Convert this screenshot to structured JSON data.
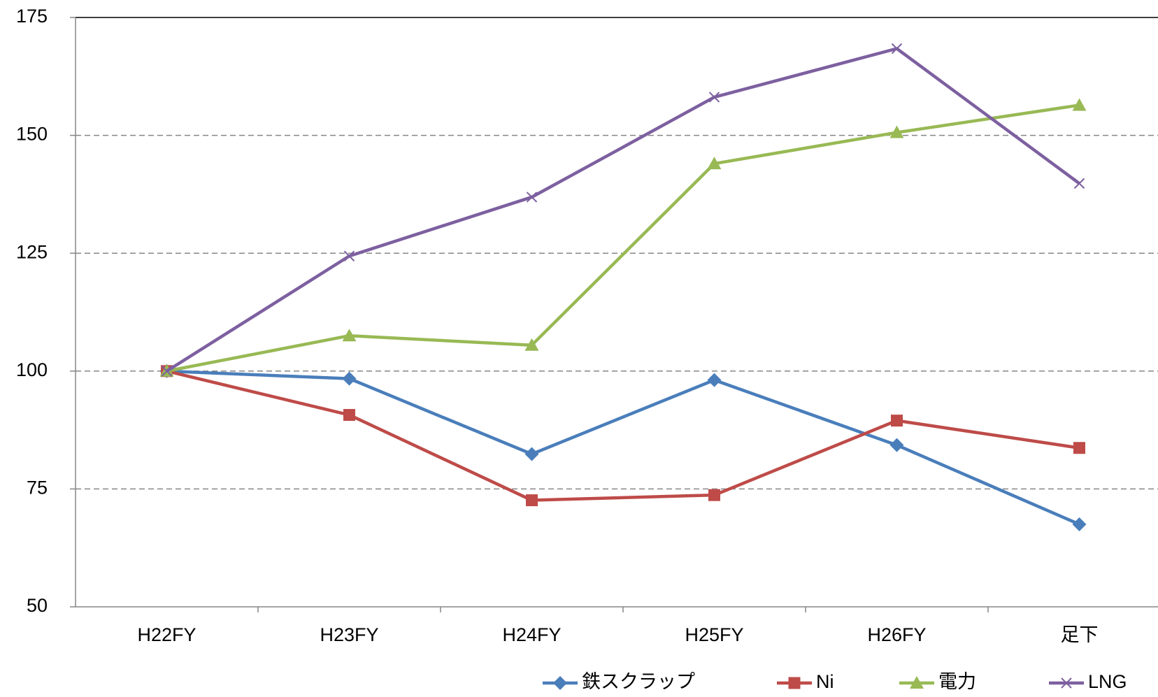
{
  "chart_data": {
    "type": "line",
    "categories": [
      "H22FY",
      "H23FY",
      "H24FY",
      "H25FY",
      "H26FY",
      "足下"
    ],
    "series": [
      {
        "name": "鉄スクラップ",
        "color": "#4a7ebb",
        "marker": "diamond",
        "values": [
          100,
          98.4,
          82.4,
          98.1,
          84.3,
          67.5
        ]
      },
      {
        "name": "Ni",
        "color": "#be4b48",
        "marker": "square",
        "values": [
          100,
          90.7,
          72.6,
          73.7,
          89.5,
          83.7
        ]
      },
      {
        "name": "電力",
        "color": "#98b954",
        "marker": "triangle",
        "values": [
          100,
          107.5,
          105.5,
          144,
          150.6,
          156.4
        ]
      },
      {
        "name": "LNG",
        "color": "#7d60a0",
        "marker": "x",
        "values": [
          100,
          124.4,
          136.9,
          158.1,
          168.4,
          139.8
        ]
      }
    ],
    "ylim": [
      50,
      175
    ],
    "yticks": [
      50,
      75,
      100,
      125,
      150,
      175
    ],
    "grid": true,
    "legend": "bottom"
  }
}
